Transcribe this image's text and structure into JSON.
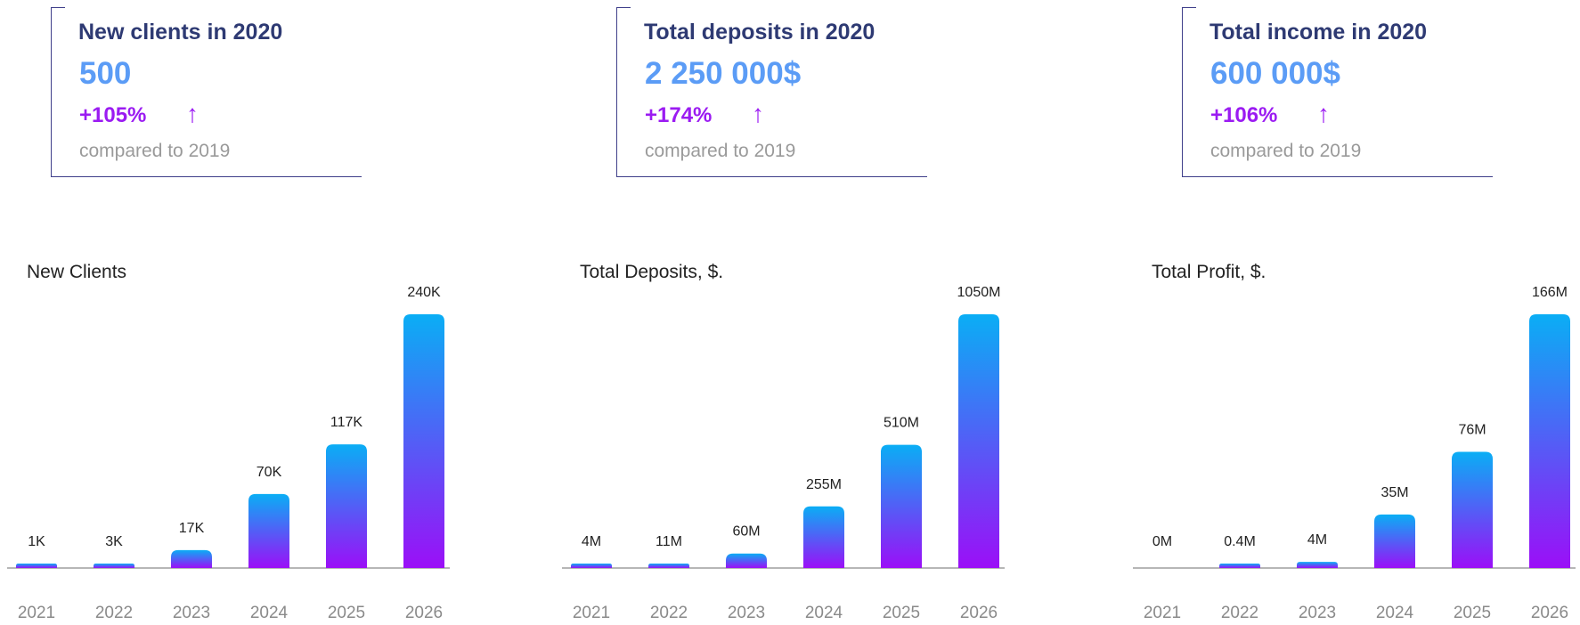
{
  "stats": [
    {
      "title": "New clients in 2020",
      "value": "500",
      "change": "+105%",
      "arrow": "↑",
      "note": "compared to 2019"
    },
    {
      "title": "Total deposits in 2020",
      "value": "2 250 000$",
      "change": "+174%",
      "arrow": "↑",
      "note": "compared to 2019"
    },
    {
      "title": "Total income in 2020",
      "value": "600 000$",
      "change": "+106%",
      "arrow": "↑",
      "note": "compared to 2019"
    }
  ],
  "colors": {
    "bar_top": "#0aaef5",
    "bar_bottom": "#9b0ff7",
    "title": "#2e3a73",
    "value": "#5b9cf6",
    "change": "#9b1bf2"
  },
  "chart_data": [
    {
      "type": "bar",
      "title": "New Clients",
      "categories": [
        "2021",
        "2022",
        "2023",
        "2024",
        "2025",
        "2026"
      ],
      "values": [
        1,
        3,
        17,
        70,
        117,
        240
      ],
      "value_labels": [
        "1K",
        "3K",
        "17K",
        "70K",
        "117K",
        "240K"
      ],
      "unit": "K",
      "ylim": [
        0,
        240
      ],
      "grid": false
    },
    {
      "type": "bar",
      "title": "Total Deposits, $.",
      "categories": [
        "2021",
        "2022",
        "2023",
        "2024",
        "2025",
        "2026"
      ],
      "values": [
        4,
        11,
        60,
        255,
        510,
        1050
      ],
      "value_labels": [
        "4M",
        "11M",
        "60M",
        "255M",
        "510M",
        "1050M"
      ],
      "unit": "M",
      "ylim": [
        0,
        1050
      ],
      "grid": false
    },
    {
      "type": "bar",
      "title": "Total Profit, $.",
      "categories": [
        "2021",
        "2022",
        "2023",
        "2024",
        "2025",
        "2026"
      ],
      "values": [
        0,
        0.4,
        4,
        35,
        76,
        166
      ],
      "value_labels": [
        "0M",
        "0.4M",
        "4M",
        "35M",
        "76M",
        "166M"
      ],
      "unit": "M",
      "ylim": [
        0,
        166
      ],
      "grid": false
    }
  ]
}
